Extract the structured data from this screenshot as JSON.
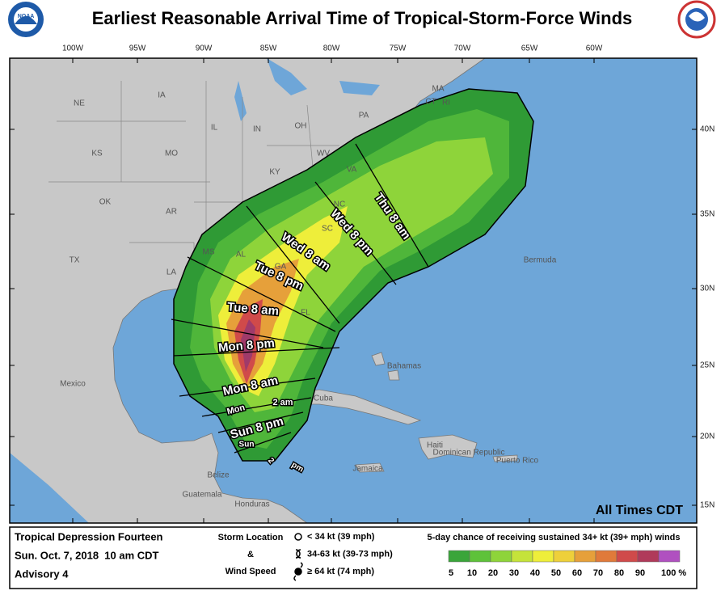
{
  "header": {
    "title": "Earliest Reasonable Arrival Time of Tropical-Storm-Force Winds",
    "left_logo": "NOAA"
  },
  "map": {
    "longitudes": [
      "100W",
      "95W",
      "90W",
      "85W",
      "80W",
      "75W",
      "70W",
      "65W",
      "60W"
    ],
    "latitudes": [
      "40N",
      "35N",
      "30N",
      "25N",
      "20N",
      "15N"
    ],
    "places": [
      "NE",
      "IA",
      "IL",
      "IN",
      "OH",
      "PA",
      "KS",
      "MO",
      "KY",
      "WV",
      "VA",
      "OK",
      "AR",
      "NC",
      "SC",
      "MS",
      "AL",
      "GA",
      "TX",
      "LA",
      "FL",
      "MA",
      "CT",
      "RI",
      "Mexico",
      "Bermuda",
      "Bahamas",
      "Cuba",
      "Haiti",
      "Dominican Republic",
      "Puerto Rico",
      "Jamaica",
      "Belize",
      "Guatemala",
      "Honduras"
    ],
    "times": [
      "Thu 8 am",
      "Wed 8 pm",
      "Wed 8 am",
      "Tue 8 pm",
      "Tue 8 am",
      "Mon 8 pm",
      "Mon 8 am",
      "Mon",
      "2 am",
      "Sun 8 pm",
      "Sun",
      "2",
      "pm"
    ],
    "note": "All Times CDT"
  },
  "footer": {
    "storm_name": "Tropical Depression Fourteen",
    "issued": "Sun. Oct. 7, 2018  10 am CDT",
    "advisory": "Advisory 4",
    "key_title_1": "Storm Location",
    "key_amp": "&",
    "key_title_2": "Wind Speed",
    "key_items": [
      "< 34 kt (39 mph)",
      "34-63 kt (39-73 mph)",
      "≥ 64 kt (74 mph)"
    ],
    "scale_title": "5-day chance of receiving sustained 34+ kt (39+ mph) winds",
    "scale_labels": [
      "5",
      "10",
      "20",
      "30",
      "40",
      "50",
      "60",
      "70",
      "80",
      "90",
      "100 %"
    ],
    "scale_colors": [
      "#3aa53a",
      "#5ec23a",
      "#8ed43a",
      "#c5e33a",
      "#eeee3a",
      "#eed03a",
      "#e6a03a",
      "#e07a3a",
      "#d04a4a",
      "#b03a5a",
      "#b050c0"
    ]
  }
}
